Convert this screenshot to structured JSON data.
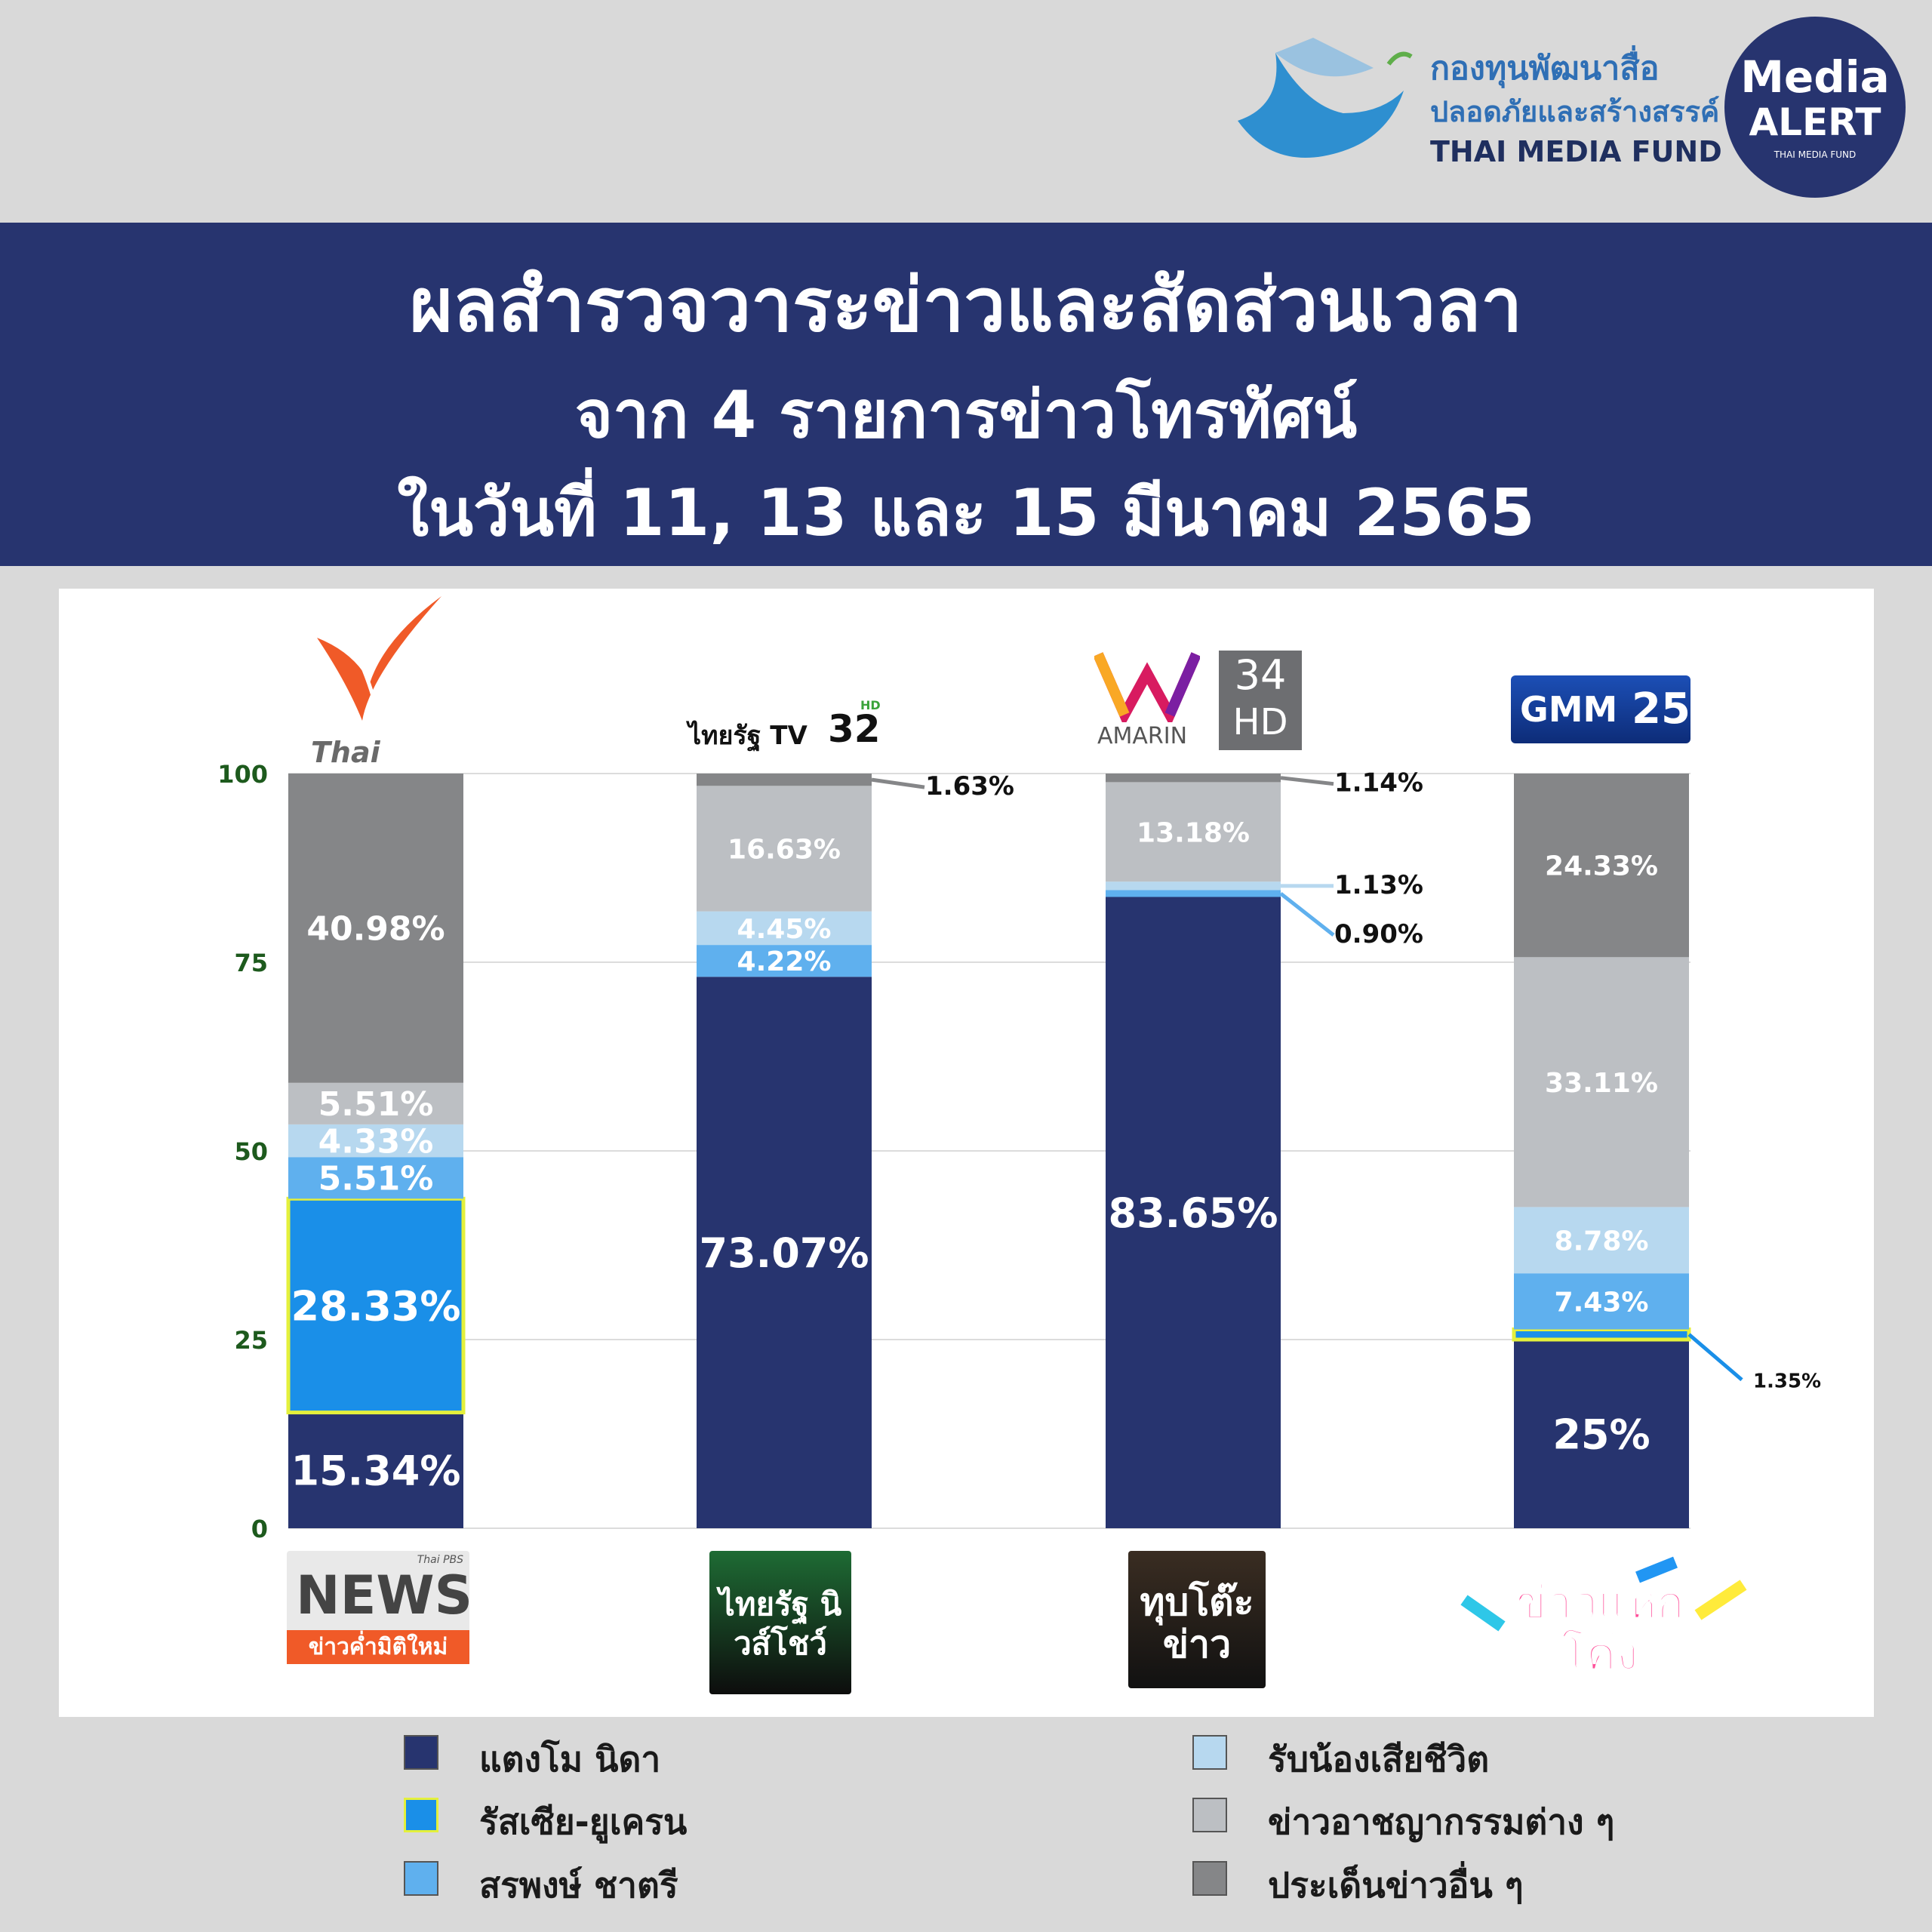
{
  "branding": {
    "fund_name_th_line1": "กองทุนพัฒนาสื่อ",
    "fund_name_th_line2": "ปลอดภัยและสร้างสรรค์",
    "fund_name_en": "THAI MEDIA FUND",
    "badge_line1": "Media",
    "badge_line2": "ALERT",
    "badge_line3": "THAI MEDIA FUND"
  },
  "title": {
    "line1": "ผลสำรวจวาระข่าวและสัดส่วนเวลา",
    "line2": "จาก 4 รายการข่าวโทรทัศน์",
    "line3": "ในวันที่ 11, 13 และ 15 มีนาคม 2565"
  },
  "channels": [
    {
      "logo_text": "Thai PBS",
      "program_logo_text": "NEWS",
      "program_subtitle": "ข่าวค่ำมิติใหม่",
      "program_badge": "Thai PBS"
    },
    {
      "logo_text": "ไทยรัฐ TV",
      "logo_number": "32",
      "logo_hd": "HD",
      "program_logo_text": "ไทยรัฐ นิวส์โชว์"
    },
    {
      "logo_text": "AMARIN",
      "logo_number": "34",
      "logo_hd": "HD",
      "program_logo_text": "ทุบโต๊ะข่าว"
    },
    {
      "logo_text": "GMM",
      "logo_number": "25",
      "program_logo_text": "ข่าวแหกโค้ง"
    }
  ],
  "legend": [
    {
      "label": "แตงโม นิดา",
      "color": "#27346f"
    },
    {
      "label": "รัสเซีย-ยูเครน",
      "color": "#1a8fe8",
      "border": "#e4f03c"
    },
    {
      "label": "สรพงษ์ ชาตรี",
      "color": "#5fb0ee"
    },
    {
      "label": "รับน้องเสียชีวิต",
      "color": "#b7d8ef"
    },
    {
      "label": "ข่าวอาชญากรรมต่าง ๆ",
      "color": "#bcbfc3"
    },
    {
      "label": "ประเด็นข่าวอื่น ๆ",
      "color": "#858688"
    }
  ],
  "chart_data": {
    "type": "bar",
    "stacked": true,
    "categories": [
      "Thai PBS",
      "ไทยรัฐ TV 32",
      "AMARIN 34 HD",
      "GMM 25"
    ],
    "ylim": [
      0,
      100
    ],
    "yticks": [
      "0",
      "25",
      "50",
      "75",
      "100"
    ],
    "grid": true,
    "series": [
      {
        "name": "แตงโม นิดา",
        "color": "#27346f",
        "values": [
          15.34,
          73.07,
          83.65,
          25
        ],
        "labels": [
          "15.34%",
          "73.07%",
          "83.65%",
          "25%"
        ]
      },
      {
        "name": "รัสเซีย-ยูเครน",
        "color": "#1a8fe8",
        "values": [
          28.33,
          0,
          0,
          1.35
        ],
        "labels": [
          "28.33%",
          "",
          "",
          "1.35%"
        ]
      },
      {
        "name": "สรพงษ์ ชาตรี",
        "color": "#5fb0ee",
        "values": [
          5.51,
          4.22,
          0.9,
          7.43
        ],
        "labels": [
          "5.51%",
          "4.22%",
          "0.90%",
          "7.43%"
        ]
      },
      {
        "name": "รับน้องเสียชีวิต",
        "color": "#b7d8ef",
        "values": [
          4.33,
          4.45,
          1.13,
          8.78
        ],
        "labels": [
          "4.33%",
          "4.45%",
          "1.13%",
          "8.78%"
        ]
      },
      {
        "name": "ข่าวอาชญากรรมต่าง ๆ",
        "color": "#bcbfc3",
        "values": [
          5.51,
          16.63,
          13.18,
          33.11
        ],
        "labels": [
          "5.51%",
          "16.63%",
          "13.18%",
          "33.11%"
        ]
      },
      {
        "name": "ประเด็นข่าวอื่น ๆ",
        "color": "#858688",
        "values": [
          40.98,
          1.63,
          1.14,
          24.33
        ],
        "labels": [
          "40.98%",
          "1.63%",
          "1.14%",
          "24.33%"
        ]
      }
    ]
  }
}
